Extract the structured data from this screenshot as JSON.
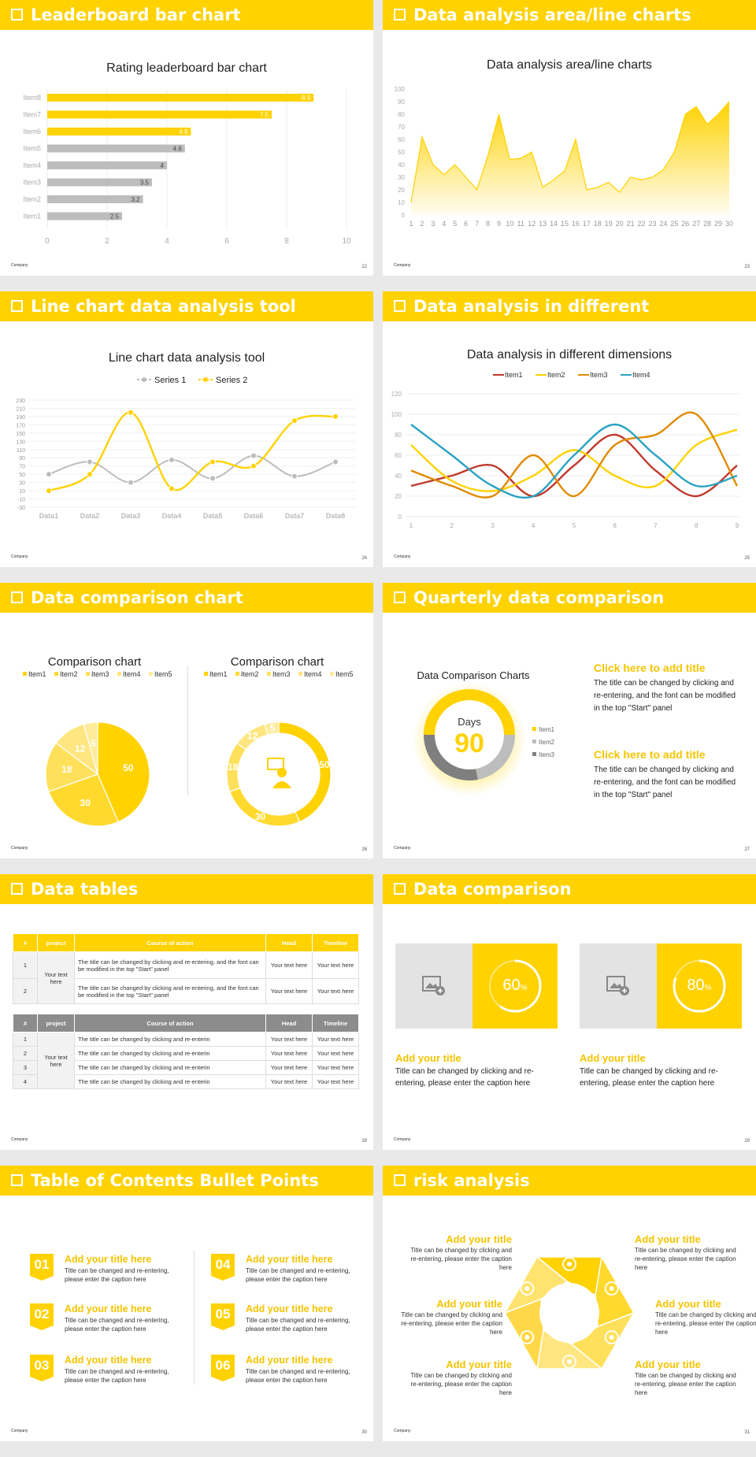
{
  "slides": [
    {
      "title": "Leaderboard bar chart",
      "page": "22",
      "logo": "Company"
    },
    {
      "title": "Data analysis area/line charts",
      "page": "23",
      "logo": "Company"
    },
    {
      "title": "Line chart data analysis tool",
      "page": "24",
      "logo": "Company"
    },
    {
      "title": "Data analysis in different dimensions",
      "page": "25",
      "logo": "Company"
    },
    {
      "title": "Data comparison chart",
      "page": "26",
      "logo": "Company"
    },
    {
      "title": "Quarterly data comparison",
      "page": "27",
      "logo": "Company"
    },
    {
      "title": "Data tables",
      "page": "28",
      "logo": "Company"
    },
    {
      "title": "Data comparison",
      "page": "29",
      "logo": "Company"
    },
    {
      "title": "Table of Contents Bullet Points",
      "page": "30",
      "logo": "Company"
    },
    {
      "title": "risk analysis",
      "page": "31",
      "logo": "Company"
    }
  ],
  "colors": {
    "accent": "#ffd200",
    "gray": "#bdbdbd",
    "dark": "#7f7f7f",
    "orange": "#e08a00",
    "red": "#c0392b",
    "teal": "#2aa3c2"
  },
  "chart_data": [
    {
      "type": "bar",
      "title": "Rating leaderboard bar chart",
      "categories": [
        "Item1",
        "Item2",
        "Item3",
        "Item4",
        "Item5",
        "Item6",
        "Item7",
        "Item8"
      ],
      "values": [
        2.5,
        3.2,
        3.5,
        4,
        4.6,
        4.8,
        7.5,
        8.9
      ],
      "highlight": [
        "Item6",
        "Item7",
        "Item8"
      ],
      "xlim": [
        0,
        10
      ],
      "xticks": [
        0,
        2,
        4,
        6,
        8,
        10
      ],
      "grid": true
    },
    {
      "type": "area",
      "title": "Data analysis area/line charts",
      "x": [
        1,
        2,
        3,
        4,
        5,
        6,
        7,
        8,
        9,
        10,
        11,
        12,
        13,
        14,
        15,
        16,
        17,
        18,
        19,
        20,
        21,
        22,
        23,
        24,
        25,
        26,
        27,
        28,
        29,
        30
      ],
      "values": [
        10,
        62,
        40,
        32,
        40,
        30,
        20,
        47,
        80,
        44,
        45,
        50,
        22,
        28,
        35,
        60,
        20,
        22,
        26,
        18,
        30,
        28,
        30,
        36,
        50,
        80,
        86,
        72,
        80,
        90
      ],
      "ylim": [
        0,
        100
      ],
      "yticks": [
        0,
        10,
        20,
        30,
        40,
        50,
        60,
        70,
        80,
        90,
        100
      ]
    },
    {
      "type": "line",
      "title": "Line chart data analysis tool",
      "categories": [
        "Data1",
        "Data2",
        "Data3",
        "Data4",
        "Data5",
        "Data6",
        "Data7",
        "Data8"
      ],
      "series": [
        {
          "name": "Series 1",
          "values": [
            50,
            80,
            30,
            85,
            40,
            95,
            45,
            80
          ]
        },
        {
          "name": "Series 2",
          "values": [
            10,
            50,
            200,
            15,
            80,
            70,
            180,
            190
          ]
        }
      ],
      "ylim": [
        -30,
        230
      ],
      "yticks": [
        -30,
        -10,
        10,
        30,
        50,
        70,
        90,
        110,
        130,
        150,
        170,
        190,
        210,
        230
      ],
      "legend": "top"
    },
    {
      "type": "line",
      "title": "Data analysis in different dimensions",
      "x": [
        1,
        2,
        3,
        4,
        5,
        6,
        7,
        8,
        9
      ],
      "series": [
        {
          "name": "Item1",
          "values": [
            30,
            40,
            50,
            20,
            50,
            80,
            45,
            20,
            50
          ]
        },
        {
          "name": "Item2",
          "values": [
            70,
            35,
            25,
            40,
            65,
            40,
            30,
            70,
            85
          ]
        },
        {
          "name": "Item3",
          "values": [
            45,
            30,
            20,
            60,
            20,
            70,
            80,
            100,
            30
          ]
        },
        {
          "name": "Item4",
          "values": [
            90,
            60,
            30,
            20,
            60,
            90,
            60,
            30,
            40
          ]
        }
      ],
      "ylim": [
        0,
        120
      ],
      "yticks": [
        0,
        20,
        40,
        60,
        80,
        100,
        120
      ],
      "legend": "top"
    },
    {
      "type": "pie",
      "title": "Comparison chart",
      "labels": [
        "Item1",
        "Item2",
        "Item3",
        "Item4",
        "Item5"
      ],
      "values": [
        50,
        30,
        18,
        12,
        5
      ]
    },
    {
      "type": "pie",
      "title": "Comparison chart",
      "labels": [
        "Item1",
        "Item2",
        "Item3",
        "Item4",
        "Item5"
      ],
      "values": [
        50,
        30,
        18,
        12,
        5
      ],
      "donut": true
    },
    {
      "type": "pie",
      "title": "Data Comparison Charts",
      "labels": [
        "Item1",
        "Item2",
        "Item3"
      ],
      "values": [
        50,
        22,
        28
      ],
      "donut": true,
      "center_label": "Days",
      "center_value": "90"
    }
  ],
  "quarterly": {
    "blocks": [
      {
        "title": "Click here to add title",
        "text": "The title can be changed by clicking and re-entering, and the font can be modified in the top \"Start\" panel"
      },
      {
        "title": "Click here to add title",
        "text": "The title can be changed by clicking and re-entering, and the font can be modified in the top \"Start\" panel"
      }
    ]
  },
  "tables": {
    "headers": [
      "#",
      "project",
      "Course of action",
      "Head",
      "Timeline"
    ],
    "table1": {
      "project": "Your text here",
      "rows": [
        {
          "n": "1",
          "action": "The title can be changed by clicking and re-entering, and the font can be modified in the top \"Start\" panel",
          "head": "Your text here",
          "timeline": "Your text here"
        },
        {
          "n": "2",
          "action": "The title can be changed by clicking and re-entering, and the font can be modified in the top \"Start\" panel",
          "head": "Your text here",
          "timeline": "Your text here"
        }
      ]
    },
    "table2": {
      "project": "Your text here",
      "rows": [
        {
          "n": "1",
          "action": "The title can be changed by clicking and re-enterin",
          "head": "Your text here",
          "timeline": "Your text here"
        },
        {
          "n": "2",
          "action": "The title can be changed by clicking and re-enterin",
          "head": "Your text here",
          "timeline": "Your text here"
        },
        {
          "n": "3",
          "action": "The title can be changed by clicking and re-enterin",
          "head": "Your text here",
          "timeline": "Your text here"
        },
        {
          "n": "4",
          "action": "The title can be changed by clicking and re-enterin",
          "head": "Your text here",
          "timeline": "Your text here"
        }
      ]
    }
  },
  "comparison": [
    {
      "percent": 60,
      "label": "60",
      "unit": "%",
      "title": "Add your title",
      "text": "Title can be changed by clicking and re-entering, please enter the caption here"
    },
    {
      "percent": 80,
      "label": "80",
      "unit": "%",
      "title": "Add your title",
      "text": "Title can be changed by clicking and re-entering, please enter the caption here"
    }
  ],
  "toc": [
    {
      "num": "01",
      "title": "Add your title here",
      "text": "Title can be changed and re-entering, please enter the caption here"
    },
    {
      "num": "02",
      "title": "Add your title here",
      "text": "Title can be changed and re-entering, please enter the caption here"
    },
    {
      "num": "03",
      "title": "Add your title here",
      "text": "Title can be changed and re-entering, please enter the caption here"
    },
    {
      "num": "04",
      "title": "Add your title here",
      "text": "Title can be changed and re-entering, please enter the caption here"
    },
    {
      "num": "05",
      "title": "Add your title here",
      "text": "Title can be changed and re-entering, please enter the caption here"
    },
    {
      "num": "06",
      "title": "Add your title here",
      "text": "Title can be changed and re-entering, please enter the caption here"
    }
  ],
  "risk": [
    {
      "title": "Add your title",
      "text": "Title can be changed by clicking and re-entering, please enter the caption here"
    },
    {
      "title": "Add your title",
      "text": "Title can be changed by clicking and re-entering, please enter the caption here"
    },
    {
      "title": "Add your title",
      "text": "Title can be changed by clicking and re-entering, please enter the caption here"
    },
    {
      "title": "Add your title",
      "text": "Title can be changed by clicking and re-entering, please enter the caption here"
    },
    {
      "title": "Add your title",
      "text": "Title can be changed by clicking and re-entering, please enter the caption here"
    },
    {
      "title": "Add your title",
      "text": "Title can be changed by clicking and re-entering, please enter the caption here"
    }
  ],
  "risk_icons": [
    "money-bag-icon",
    "coins-icon",
    "people-icon",
    "pie-chart-icon",
    "building-icon",
    "handshake-icon"
  ]
}
